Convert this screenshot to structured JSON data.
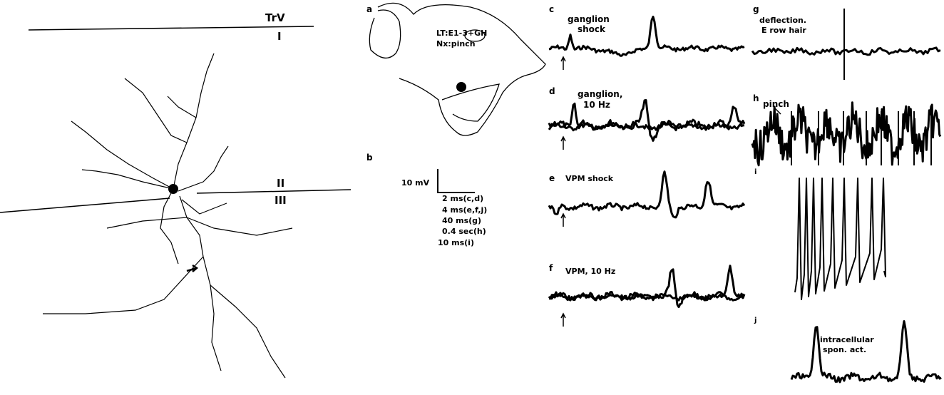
{
  "neuron": {
    "trv": "TrV",
    "layer_1": "I",
    "layer_2": "II",
    "layer_3": "III"
  },
  "panel_a": {
    "letter": "a",
    "lines": [
      "LT:E1-3+GH",
      "Nx:pinch"
    ]
  },
  "panel_b": {
    "letter": "b",
    "voltage": "10 mV",
    "times": [
      "2 ms(c,d)",
      "4 ms(e,f,j)",
      "40 ms(g)",
      "0.4 sec(h)",
      "10 ms(i)"
    ]
  },
  "panel_c": {
    "letter": "c",
    "lines": [
      "ganglion",
      "shock"
    ]
  },
  "panel_d": {
    "letter": "d",
    "lines": [
      "ganglion,",
      "10 Hz"
    ]
  },
  "panel_e": {
    "letter": "e",
    "lines": [
      "VPM shock"
    ]
  },
  "panel_f": {
    "letter": "f",
    "lines": [
      "VPM, 10 Hz"
    ]
  },
  "panel_g": {
    "letter": "g",
    "lines": [
      "deflection.",
      "E row hair"
    ]
  },
  "panel_h": {
    "letter": "h",
    "lines": [
      "pinch"
    ]
  },
  "panel_i": {
    "letter": "i"
  },
  "panel_j": {
    "letter": "j",
    "lines": [
      "intracellular",
      "spon. act."
    ]
  }
}
